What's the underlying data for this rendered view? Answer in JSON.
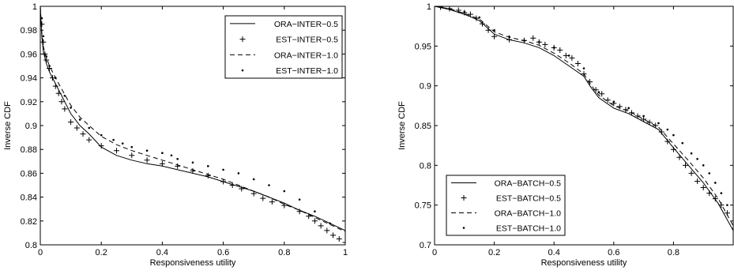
{
  "chart_data": [
    {
      "type": "line",
      "title": "",
      "xlabel": "Responsiveness utility",
      "ylabel": "Inverse CDF",
      "xlim": [
        0,
        1
      ],
      "ylim": [
        0.8,
        1
      ],
      "xticks": [
        "0",
        "0.2",
        "0.4",
        "0.6",
        "0.8",
        "1"
      ],
      "yticks": [
        "0.8",
        "0.82",
        "0.84",
        "0.86",
        "0.88",
        "0.9",
        "0.92",
        "0.94",
        "0.96",
        "0.98",
        "1"
      ],
      "legend_position": "top-right",
      "grid": false,
      "series": [
        {
          "name": "ORA−INTER−0.5",
          "style": "solid",
          "x": [
            0,
            0.005,
            0.01,
            0.02,
            0.03,
            0.05,
            0.08,
            0.1,
            0.13,
            0.16,
            0.2,
            0.25,
            0.3,
            0.35,
            0.4,
            0.45,
            0.5,
            0.55,
            0.6,
            0.65,
            0.7,
            0.75,
            0.8,
            0.85,
            0.9,
            0.95,
            1.0
          ],
          "y": [
            1.0,
            0.975,
            0.962,
            0.952,
            0.945,
            0.935,
            0.92,
            0.91,
            0.9,
            0.893,
            0.882,
            0.875,
            0.871,
            0.868,
            0.866,
            0.863,
            0.86,
            0.857,
            0.853,
            0.849,
            0.845,
            0.84,
            0.835,
            0.829,
            0.824,
            0.818,
            0.812
          ]
        },
        {
          "name": "EST−INTER−0.5",
          "style": "plus",
          "x": [
            0.005,
            0.01,
            0.015,
            0.02,
            0.03,
            0.04,
            0.05,
            0.06,
            0.07,
            0.08,
            0.1,
            0.12,
            0.14,
            0.16,
            0.2,
            0.25,
            0.3,
            0.35,
            0.4,
            0.45,
            0.5,
            0.55,
            0.6,
            0.63,
            0.66,
            0.7,
            0.73,
            0.76,
            0.8,
            0.85,
            0.88,
            0.9,
            0.92,
            0.94,
            0.96,
            0.98,
            1.0
          ],
          "y": [
            0.985,
            0.97,
            0.96,
            0.955,
            0.948,
            0.94,
            0.933,
            0.927,
            0.92,
            0.914,
            0.903,
            0.898,
            0.893,
            0.888,
            0.883,
            0.879,
            0.875,
            0.871,
            0.868,
            0.866,
            0.862,
            0.858,
            0.853,
            0.85,
            0.847,
            0.843,
            0.839,
            0.836,
            0.833,
            0.828,
            0.824,
            0.82,
            0.816,
            0.812,
            0.808,
            0.805,
            0.802
          ]
        },
        {
          "name": "ORA−INTER−1.0",
          "style": "dashed",
          "x": [
            0,
            0.005,
            0.01,
            0.02,
            0.03,
            0.05,
            0.08,
            0.1,
            0.13,
            0.16,
            0.2,
            0.25,
            0.3,
            0.35,
            0.4,
            0.45,
            0.5,
            0.55,
            0.6,
            0.65,
            0.7,
            0.75,
            0.8,
            0.85,
            0.9,
            0.95,
            1.0
          ],
          "y": [
            1.0,
            0.978,
            0.966,
            0.957,
            0.95,
            0.94,
            0.926,
            0.917,
            0.907,
            0.9,
            0.891,
            0.884,
            0.879,
            0.875,
            0.871,
            0.867,
            0.863,
            0.859,
            0.855,
            0.85,
            0.845,
            0.84,
            0.834,
            0.829,
            0.823,
            0.817,
            0.811
          ]
        },
        {
          "name": "EST−INTER−1.0",
          "style": "dot",
          "x": [
            0.005,
            0.01,
            0.02,
            0.03,
            0.05,
            0.08,
            0.1,
            0.13,
            0.16,
            0.2,
            0.24,
            0.27,
            0.3,
            0.35,
            0.4,
            0.43,
            0.45,
            0.5,
            0.55,
            0.6,
            0.65,
            0.7,
            0.75,
            0.8,
            0.85,
            0.9,
            0.95
          ],
          "y": [
            0.99,
            0.975,
            0.958,
            0.95,
            0.94,
            0.925,
            0.915,
            0.905,
            0.898,
            0.892,
            0.888,
            0.885,
            0.882,
            0.879,
            0.877,
            0.875,
            0.872,
            0.869,
            0.866,
            0.863,
            0.86,
            0.855,
            0.85,
            0.845,
            0.838,
            0.828,
            0.818
          ]
        }
      ]
    },
    {
      "type": "line",
      "title": "",
      "xlabel": "Responsiveness utility",
      "ylabel": "Inverse CDF",
      "xlim": [
        0,
        1
      ],
      "ylim": [
        0.7,
        1
      ],
      "xticks": [
        "0",
        "0.2",
        "0.4",
        "0.6",
        "0.8"
      ],
      "yticks": [
        "0.7",
        "0.75",
        "0.8",
        "0.85",
        "0.9",
        "0.95",
        "1"
      ],
      "legend_position": "bottom-left",
      "grid": false,
      "series": [
        {
          "name": "ORA−BATCH−0.5",
          "style": "solid",
          "x": [
            0,
            0.05,
            0.1,
            0.15,
            0.2,
            0.25,
            0.3,
            0.35,
            0.4,
            0.45,
            0.5,
            0.52,
            0.55,
            0.6,
            0.65,
            0.7,
            0.75,
            0.8,
            0.85,
            0.9,
            0.95,
            1.0
          ],
          "y": [
            1.0,
            0.996,
            0.99,
            0.982,
            0.965,
            0.958,
            0.954,
            0.948,
            0.938,
            0.925,
            0.912,
            0.9,
            0.885,
            0.872,
            0.865,
            0.855,
            0.845,
            0.822,
            0.8,
            0.778,
            0.752,
            0.718
          ]
        },
        {
          "name": "EST−BATCH−0.5",
          "style": "plus",
          "x": [
            0.02,
            0.05,
            0.08,
            0.1,
            0.12,
            0.14,
            0.16,
            0.18,
            0.2,
            0.25,
            0.3,
            0.33,
            0.35,
            0.37,
            0.4,
            0.42,
            0.44,
            0.46,
            0.48,
            0.5,
            0.52,
            0.54,
            0.56,
            0.58,
            0.6,
            0.62,
            0.64,
            0.66,
            0.68,
            0.7,
            0.72,
            0.74,
            0.76,
            0.78,
            0.8,
            0.82,
            0.84,
            0.86,
            0.88,
            0.9,
            0.92,
            0.94,
            0.96,
            0.98,
            1.0
          ],
          "y": [
            0.999,
            0.997,
            0.995,
            0.992,
            0.99,
            0.985,
            0.978,
            0.97,
            0.962,
            0.958,
            0.957,
            0.96,
            0.955,
            0.952,
            0.948,
            0.945,
            0.938,
            0.935,
            0.928,
            0.915,
            0.905,
            0.895,
            0.89,
            0.882,
            0.878,
            0.874,
            0.87,
            0.866,
            0.862,
            0.858,
            0.854,
            0.85,
            0.842,
            0.83,
            0.82,
            0.81,
            0.8,
            0.79,
            0.78,
            0.772,
            0.765,
            0.758,
            0.75,
            0.74,
            0.73
          ]
        },
        {
          "name": "ORA−BATCH−1.0",
          "style": "dashed",
          "x": [
            0,
            0.05,
            0.1,
            0.15,
            0.2,
            0.25,
            0.3,
            0.35,
            0.4,
            0.45,
            0.5,
            0.52,
            0.55,
            0.6,
            0.65,
            0.7,
            0.75,
            0.8,
            0.85,
            0.9,
            0.95,
            1.0
          ],
          "y": [
            1.0,
            0.997,
            0.991,
            0.984,
            0.968,
            0.961,
            0.957,
            0.951,
            0.941,
            0.929,
            0.915,
            0.903,
            0.888,
            0.875,
            0.868,
            0.858,
            0.848,
            0.827,
            0.806,
            0.784,
            0.758,
            0.724
          ]
        },
        {
          "name": "EST−BATCH−1.0",
          "style": "dot",
          "x": [
            0.02,
            0.05,
            0.1,
            0.15,
            0.2,
            0.25,
            0.3,
            0.35,
            0.4,
            0.45,
            0.5,
            0.55,
            0.6,
            0.65,
            0.7,
            0.75,
            0.78,
            0.8,
            0.83,
            0.86,
            0.88,
            0.9,
            0.92,
            0.94,
            0.96,
            0.98,
            1.0
          ],
          "y": [
            0.999,
            0.997,
            0.993,
            0.986,
            0.97,
            0.962,
            0.957,
            0.955,
            0.948,
            0.938,
            0.922,
            0.892,
            0.88,
            0.872,
            0.862,
            0.853,
            0.845,
            0.838,
            0.828,
            0.815,
            0.808,
            0.8,
            0.79,
            0.778,
            0.765,
            0.75,
            0.72
          ]
        }
      ]
    }
  ]
}
